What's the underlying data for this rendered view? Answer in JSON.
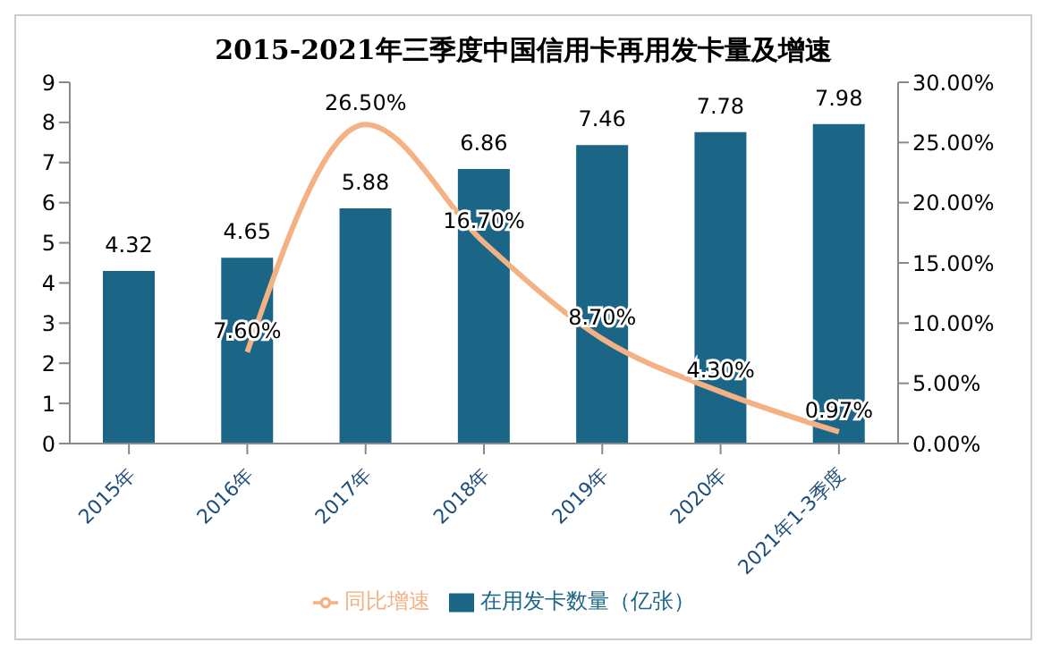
{
  "chart_data": {
    "type": "bar",
    "title": "2015-2021年三季度中国信用卡再用发卡量及增速",
    "categories": [
      "2015年",
      "2016年",
      "2017年",
      "2018年",
      "2019年",
      "2020年",
      "2021年1-3季度"
    ],
    "series": [
      {
        "name": "在用发卡数量（亿张）",
        "color": "#1b6587",
        "values": [
          4.32,
          4.65,
          5.88,
          6.86,
          7.46,
          7.78,
          7.98
        ]
      },
      {
        "name": "同比增速",
        "type": "line",
        "axis": "y2",
        "color": "#f4b183",
        "values": [
          null,
          7.6,
          26.5,
          16.7,
          8.7,
          4.3,
          0.97
        ],
        "value_labels": [
          null,
          "7.60%",
          "26.50%",
          "16.70%",
          "8.70%",
          "4.30%",
          "0.97%"
        ]
      }
    ],
    "data_labels": true,
    "ylim": [
      0,
      9
    ],
    "yticks": [
      0,
      1,
      2,
      3,
      4,
      5,
      6,
      7,
      8,
      9
    ],
    "y2lim": [
      0,
      30
    ],
    "y2ticks": [
      {
        "value": 0,
        "label": "0.00%"
      },
      {
        "value": 5,
        "label": "5.00%"
      },
      {
        "value": 10,
        "label": "10.00%"
      },
      {
        "value": 15,
        "label": "15.00%"
      },
      {
        "value": 20,
        "label": "20.00%"
      },
      {
        "value": 25,
        "label": "25.00%"
      },
      {
        "value": 30,
        "label": "30.00%"
      }
    ],
    "legend": "bottom",
    "marker": "none"
  }
}
